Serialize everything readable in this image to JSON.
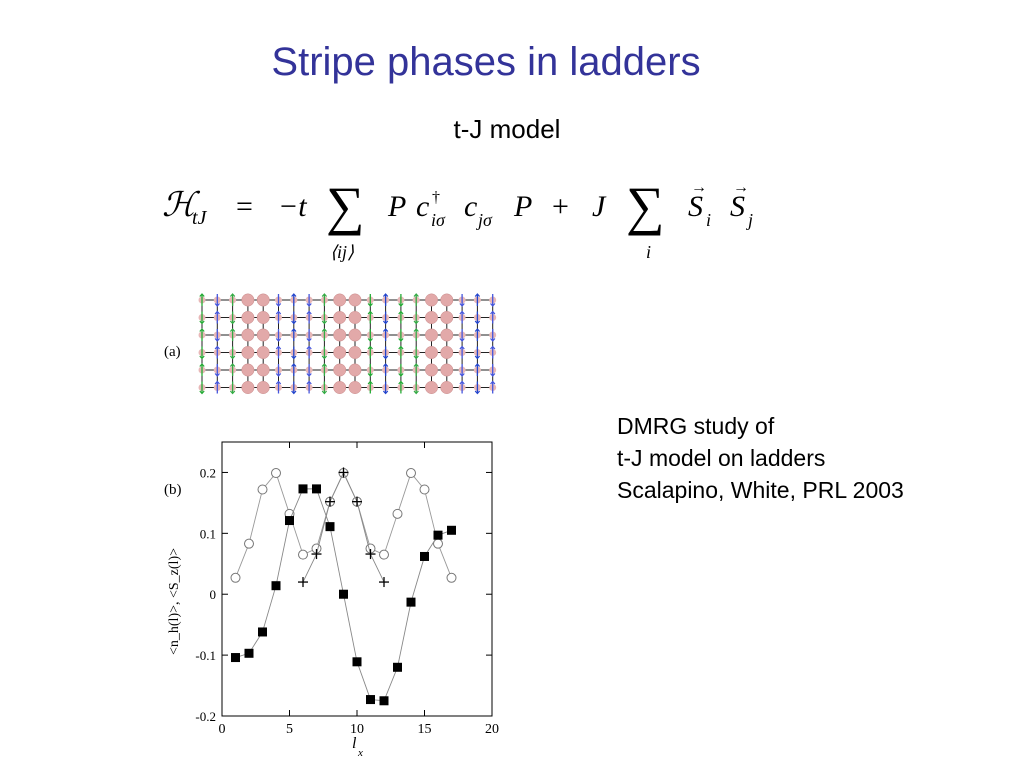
{
  "slide": {
    "title": "Stripe phases in ladders",
    "subtitle": "t-J model"
  },
  "equation": {
    "lhs_H": "ℋ",
    "lhs_sub": "tJ",
    "equals": "=",
    "minus_t": "−t",
    "sum": "∑",
    "sum1_under": "⟨ij⟩",
    "P1": "P",
    "c": "c",
    "dagger": "†",
    "c_sub1": "iσ",
    "c_sub2": "jσ",
    "P2": "P",
    "plus": "+",
    "J": "J",
    "sum2_under": "i",
    "S": "S",
    "S_sub_i": "i",
    "S_sub_j": "j"
  },
  "panel_a": {
    "label": "(a)"
  },
  "caption": {
    "lines": [
      "DMRG study of",
      "t-J model on ladders",
      "Scalapino, White, PRL 2003"
    ]
  },
  "chart_data": {
    "type": "line",
    "panel_label": "(b)",
    "xlabel": "l",
    "xlabel_sub": "x",
    "ylabel": "<n_h(l)>,  <S_z(l)>",
    "xlim": [
      0,
      20
    ],
    "ylim": [
      -0.2,
      0.25
    ],
    "xticks": [
      0,
      5,
      10,
      15,
      20
    ],
    "xtick_labels": [
      "0",
      "5",
      "10",
      "15",
      "20"
    ],
    "yticks": [
      -0.2,
      -0.1,
      0,
      0.1,
      0.2
    ],
    "ytick_labels": [
      "-0.2",
      "-0.1",
      "0",
      "0.1",
      "0.2"
    ],
    "series": [
      {
        "marker": "circle-open",
        "color": "#888888",
        "line": true,
        "x": [
          1,
          2,
          3,
          4,
          5,
          6,
          7,
          8,
          9,
          10,
          11,
          12,
          13,
          14,
          15,
          16,
          17
        ],
        "y": [
          0.027,
          0.083,
          0.172,
          0.199,
          0.132,
          0.065,
          0.075,
          0.152,
          0.199,
          0.152,
          0.075,
          0.065,
          0.132,
          0.199,
          0.172,
          0.083,
          0.027
        ]
      },
      {
        "marker": "square-filled",
        "color": "#000000",
        "line": true,
        "x": [
          1,
          2,
          3,
          4,
          5,
          6,
          7,
          8,
          9,
          10,
          11,
          12,
          13,
          14,
          15,
          16,
          17
        ],
        "y": [
          -0.104,
          -0.097,
          -0.062,
          0.014,
          0.121,
          0.173,
          0.173,
          0.111,
          0.0,
          -0.111,
          -0.173,
          -0.175,
          -0.12,
          -0.013,
          0.062,
          0.097,
          0.105
        ]
      },
      {
        "marker": "plus",
        "color": "#000000",
        "line": true,
        "x": [
          6,
          7,
          8,
          9,
          10,
          11,
          12
        ],
        "y": [
          0.02,
          0.066,
          0.152,
          0.2,
          0.152,
          0.066,
          0.02
        ]
      }
    ]
  }
}
